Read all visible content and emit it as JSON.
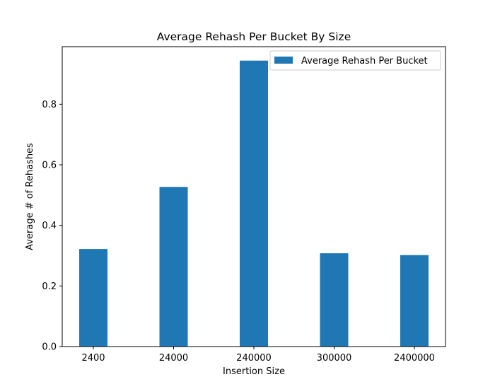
{
  "chart_data": {
    "type": "bar",
    "title": "Average Rehash Per Bucket By Size",
    "xlabel": "Insertion Size",
    "ylabel": "Average # of Rehashes",
    "categories": [
      "2400",
      "24000",
      "240000",
      "300000",
      "2400000"
    ],
    "series": [
      {
        "name": "Average Rehash Per Bucket",
        "values": [
          0.322,
          0.527,
          0.944,
          0.308,
          0.302
        ],
        "color": "#1f77b4"
      }
    ],
    "ylim": [
      0,
      0.99
    ],
    "yticks": [
      0.0,
      0.2,
      0.4,
      0.6,
      0.8
    ],
    "ytick_labels": [
      "0.0",
      "0.2",
      "0.4",
      "0.6",
      "0.8"
    ],
    "grid": false,
    "legend_position": "top-right"
  }
}
